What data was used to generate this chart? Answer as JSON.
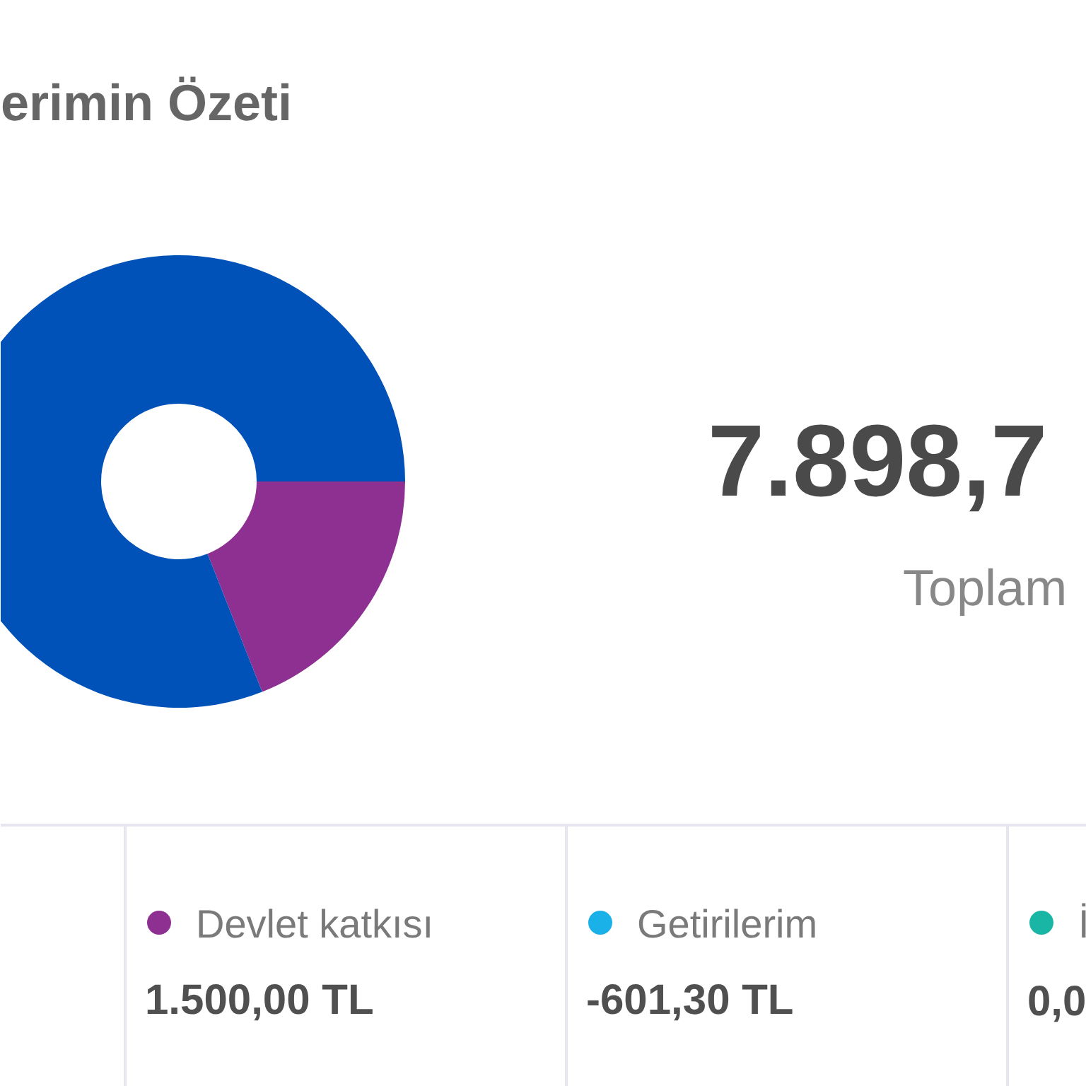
{
  "chart_data": {
    "type": "donut",
    "title": "erimin Özeti",
    "categories": [
      null,
      "Devlet katkısı",
      "Getirilerim",
      "İ"
    ],
    "values": [
      81,
      19,
      0,
      0
    ],
    "colors": [
      "#0052b8",
      "#8e3092",
      "#1ab0e8",
      "#19b5a5"
    ],
    "legend": "bottom",
    "annotations": [
      "7.898,7",
      "Toplam",
      "1.500,00 TL",
      "-601,30 TL",
      "0,0"
    ]
  }
}
